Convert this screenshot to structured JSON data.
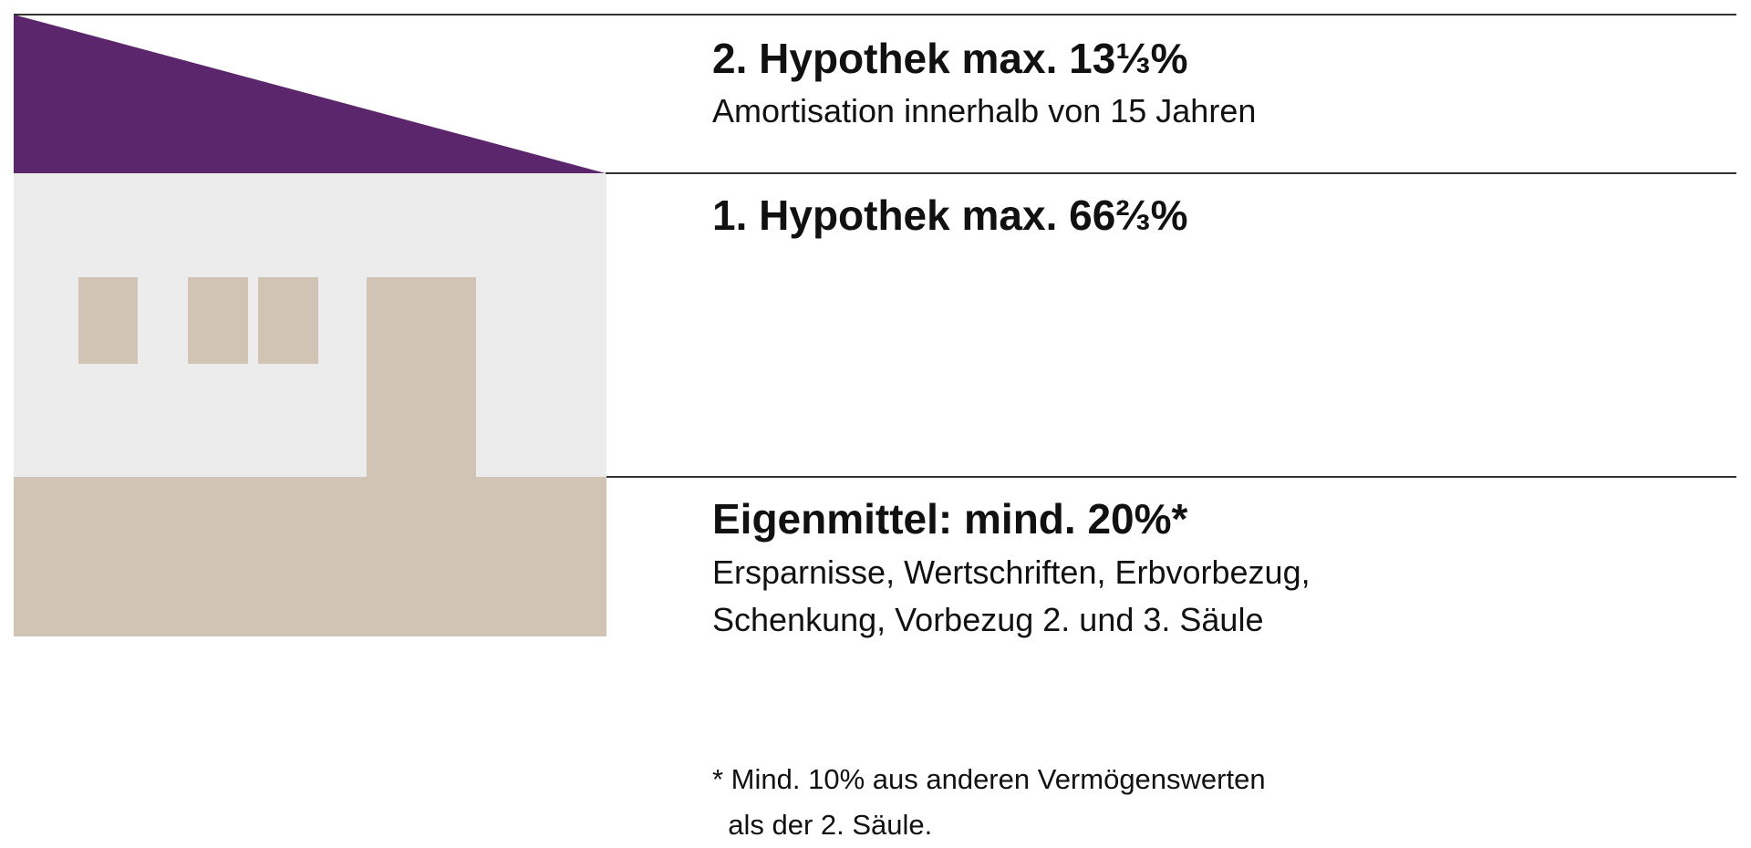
{
  "colors": {
    "roof": "#5c266c",
    "wall": "#ececec",
    "foundation": "#d2c4b4",
    "windows_door": "#d2c4b4",
    "rules": "#333333"
  },
  "sections": {
    "second_mortgage": {
      "title": "2. Hypothek max. 13⅓%",
      "subtitle": "Amortisation innerhalb von 15 Jahren"
    },
    "first_mortgage": {
      "title": "1. Hypothek max. 66⅔%"
    },
    "equity": {
      "title": "Eigenmittel: mind. 20%*",
      "lines": [
        "Ersparnisse, Wertschriften, Erbvorbezug,",
        "Schenkung, Vorbezug 2. und 3. Säule"
      ]
    }
  },
  "footnote": {
    "lines": [
      "* Mind. 10% aus anderen Vermögenswerten",
      "  als der 2. Säule."
    ]
  }
}
